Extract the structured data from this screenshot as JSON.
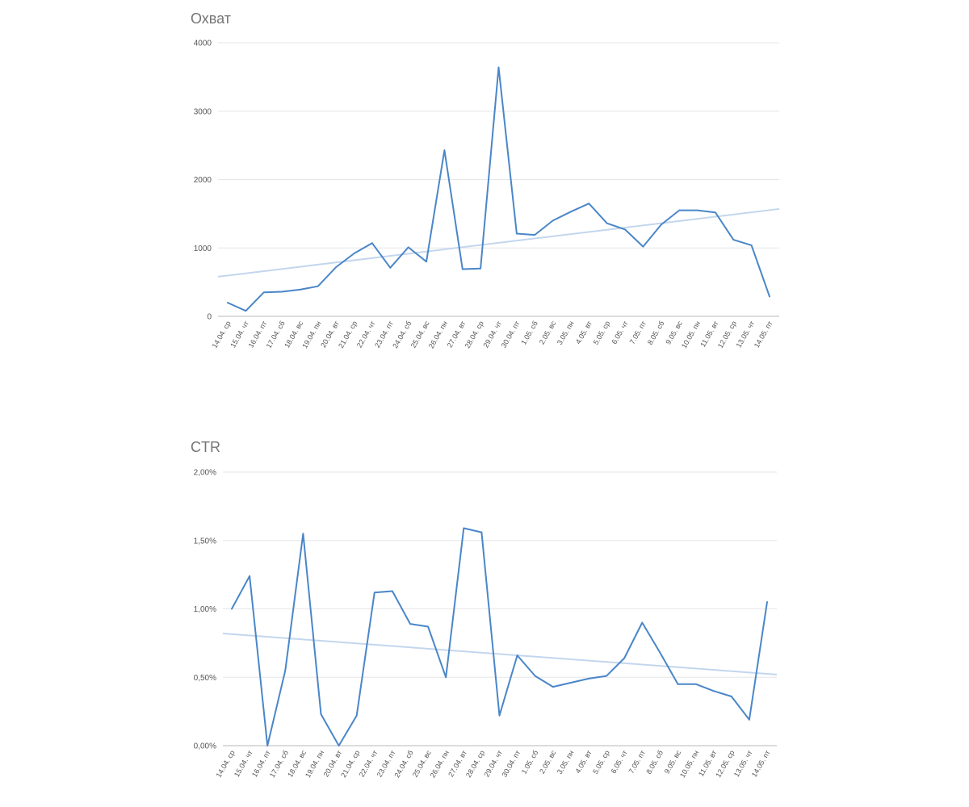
{
  "colors": {
    "series": "#4a86c8",
    "trend": "#c3d6ee",
    "title": "#757575",
    "grid": "#e6e6e6"
  },
  "chart_data": [
    {
      "type": "line",
      "title": "Охват",
      "xlabel": "",
      "ylabel": "",
      "ylim": [
        0,
        4000
      ],
      "y_ticks": [
        "0",
        "1000",
        "2000",
        "3000",
        "4000"
      ],
      "y_tick_values": [
        0,
        1000,
        2000,
        3000,
        4000
      ],
      "grid": true,
      "trendline": true,
      "trend_values": [
        580,
        1570
      ],
      "categories": [
        "14.04. ср",
        "15.04. чт",
        "16.04. пт",
        "17.04. сб",
        "18.04. вс",
        "19.04. пн",
        "20.04. вт",
        "21.04. ср",
        "22.04. чт",
        "23.04. пт",
        "24.04. сб",
        "25.04. вс",
        "26.04. пн",
        "27.04. вт",
        "28.04. ср",
        "29.04. чт",
        "30.04. пт",
        "1.05. сб",
        "2.05. вс",
        "3.05. пн",
        "4.05. вт",
        "5.05. ср",
        "6.05. чт",
        "7.05. пт",
        "8.05. сб",
        "9.05. вс",
        "10.05. пн",
        "11.05. вт",
        "12.05. ср",
        "13.05. чт",
        "14.05. пт"
      ],
      "series": [
        {
          "values": [
            200,
            80,
            350,
            360,
            390,
            440,
            720,
            920,
            1070,
            710,
            1010,
            800,
            2430,
            690,
            700,
            3640,
            1210,
            1190,
            1400,
            1530,
            1650,
            1360,
            1270,
            1020,
            1340,
            1550,
            1550,
            1520,
            1120,
            1040,
            290
          ]
        }
      ]
    },
    {
      "type": "line",
      "title": "CTR",
      "xlabel": "",
      "ylabel": "",
      "ylim": [
        0,
        2
      ],
      "y_ticks": [
        "0,00%",
        "0,50%",
        "1,00%",
        "1,50%",
        "2,00%"
      ],
      "y_tick_values": [
        0,
        0.5,
        1,
        1.5,
        2
      ],
      "grid": true,
      "trendline": true,
      "trend_values": [
        0.82,
        0.52
      ],
      "categories": [
        "14.04. ср",
        "15.04. чт",
        "16.04. пт",
        "17.04. сб",
        "18.04. вс",
        "19.04. пн",
        "20.04. вт",
        "21.04. ср",
        "22.04. чт",
        "23.04. пт",
        "24.04. сб",
        "25.04. вс",
        "26.04. пн",
        "27.04. вт",
        "28.04. ср",
        "29.04. чт",
        "30.04. пт",
        "1.05. сб",
        "2.05. вс",
        "3.05. пн",
        "4.05. вт",
        "5.05. ср",
        "6.05. чт",
        "7.05. пт",
        "8.05. сб",
        "9.05. вс",
        "10.05. пн",
        "11.05. вт",
        "12.05. ср",
        "13.05. чт",
        "14.05. пт"
      ],
      "series": [
        {
          "values": [
            1.0,
            1.24,
            0.0,
            0.55,
            1.55,
            0.23,
            0.0,
            0.22,
            1.12,
            1.13,
            0.89,
            0.87,
            0.5,
            1.59,
            1.56,
            0.22,
            0.66,
            0.51,
            0.43,
            0.46,
            0.49,
            0.51,
            0.64,
            0.9,
            0.68,
            0.45,
            0.45,
            0.4,
            0.36,
            0.19,
            1.05
          ]
        }
      ]
    }
  ]
}
